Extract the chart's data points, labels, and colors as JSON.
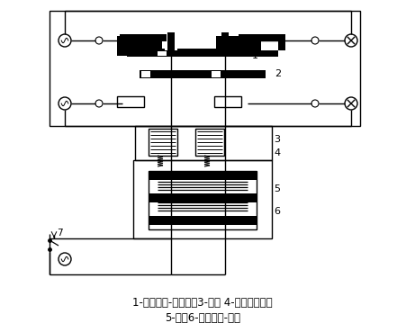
{
  "bg_color": "#ffffff",
  "line_color": "#000000",
  "fig_width": 4.51,
  "fig_height": 3.69,
  "caption_line1": "1-常闭触头-常开触头3-衔铁 4-反作用力弹簧",
  "caption_line2": "5-铁芯6-电磁线圈-按钮",
  "caption_fontsize": 8.5
}
